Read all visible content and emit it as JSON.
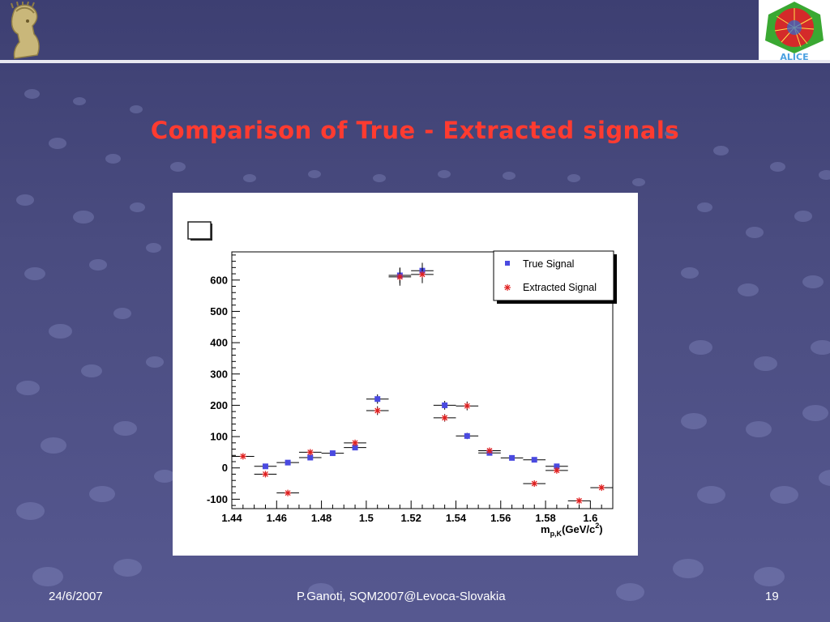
{
  "slide": {
    "title": "Comparison of True - Extracted signals",
    "footer_date": "24/6/2007",
    "footer_center": "P.Ganoti, SQM2007@Levoca-Slovakia",
    "page_number": "19",
    "left_logo": "athena-head-logo",
    "right_logo": "alice-logo",
    "right_logo_text": "ALICE",
    "background_color": "#464878",
    "title_color": "#ff3b30"
  },
  "chart_data": {
    "type": "scatter",
    "xlabel_main": "m",
    "xlabel_sub": "p,K",
    "xlabel_unit": "(GeV/c",
    "xlabel_sup": "2",
    "xlabel_close": ")",
    "ylabel": "",
    "xlim": [
      1.44,
      1.61
    ],
    "ylim": [
      -130,
      690
    ],
    "x_ticks": [
      1.44,
      1.46,
      1.48,
      1.5,
      1.52,
      1.54,
      1.56,
      1.58,
      1.6
    ],
    "x_tick_labels": [
      "1.44",
      "1.46",
      "1.48",
      "1.5",
      "1.52",
      "1.54",
      "1.56",
      "1.58",
      "1.6"
    ],
    "y_ticks": [
      -100,
      0,
      100,
      200,
      300,
      400,
      500,
      600
    ],
    "y_tick_labels": [
      "-100",
      "0",
      "100",
      "200",
      "300",
      "400",
      "500",
      "600"
    ],
    "bin_width": 0.01,
    "legend_position": "top-right",
    "series": [
      {
        "name": "True Signal",
        "marker": "square",
        "color": "#4a4ae0",
        "x": [
          1.455,
          1.465,
          1.475,
          1.485,
          1.495,
          1.505,
          1.515,
          1.525,
          1.535,
          1.545,
          1.555,
          1.565,
          1.575,
          1.585
        ],
        "y": [
          5,
          17,
          33,
          47,
          65,
          220,
          615,
          630,
          200,
          102,
          48,
          32,
          26,
          5
        ],
        "yerr": [
          5,
          5,
          6,
          7,
          8,
          15,
          25,
          25,
          14,
          10,
          7,
          6,
          5,
          4
        ]
      },
      {
        "name": "Extracted Signal",
        "marker": "star",
        "color": "#e02020",
        "x": [
          1.445,
          1.455,
          1.465,
          1.475,
          1.495,
          1.505,
          1.515,
          1.525,
          1.535,
          1.545,
          1.555,
          1.575,
          1.585,
          1.595,
          1.605
        ],
        "y": [
          37,
          -20,
          -80,
          50,
          80,
          183,
          610,
          618,
          160,
          198,
          55,
          -50,
          -8,
          -105,
          -63
        ],
        "yerr": [
          5,
          5,
          5,
          7,
          8,
          14,
          28,
          28,
          12,
          14,
          7,
          5,
          5,
          5,
          5
        ]
      }
    ]
  }
}
